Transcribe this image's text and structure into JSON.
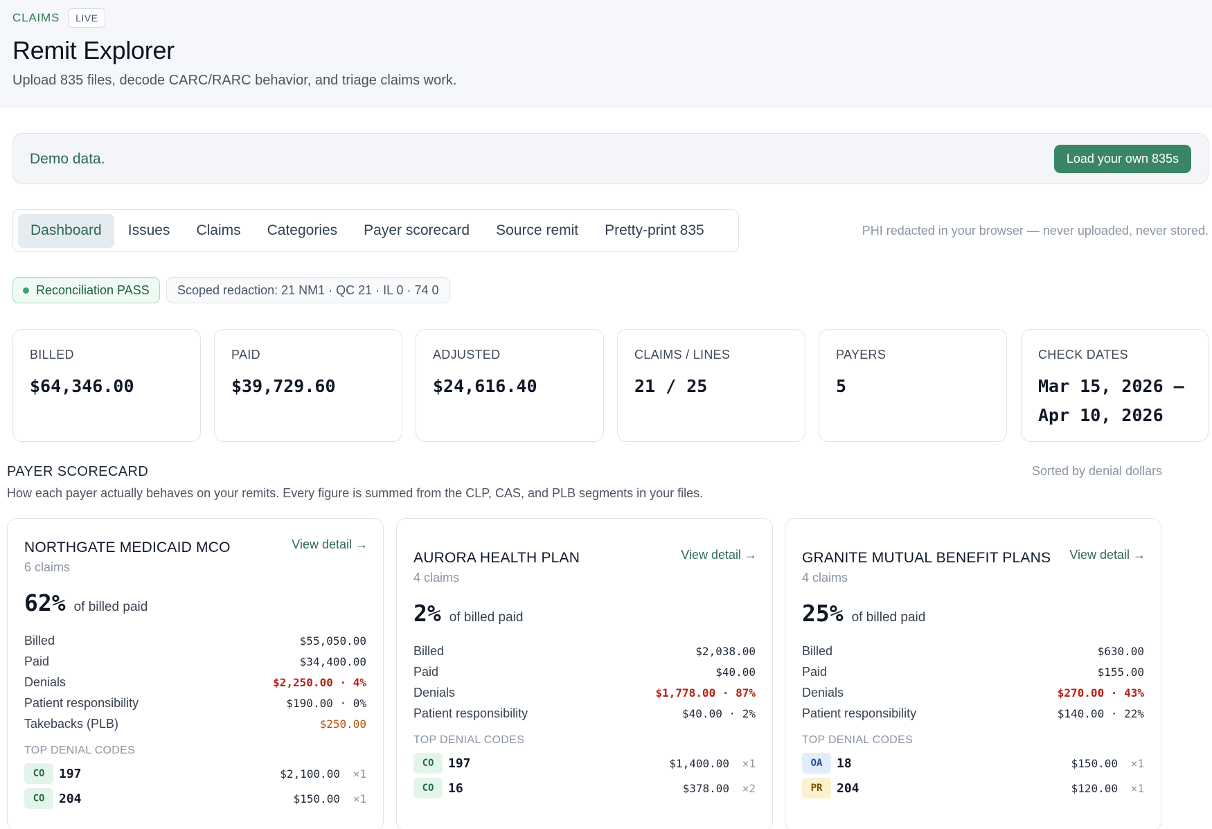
{
  "header": {
    "eyebrow": "CLAIMS",
    "badge": "LIVE",
    "title": "Remit Explorer",
    "subtitle": "Upload 835 files, decode CARC/RARC behavior, and triage claims work."
  },
  "banner": {
    "text": "Demo data.",
    "button": "Load your own 835s"
  },
  "tabs": [
    "Dashboard",
    "Issues",
    "Claims",
    "Categories",
    "Payer scorecard",
    "Source remit",
    "Pretty-print 835"
  ],
  "active_tab": "Dashboard",
  "phi_note": "PHI redacted in your browser — never uploaded, never stored.",
  "status": {
    "reconciliation": "Reconciliation PASS",
    "redaction": "Scoped redaction: 21 NM1 · QC 21 · IL 0 · 74 0"
  },
  "metrics": [
    {
      "label": "BILLED",
      "value": "$64,346.00"
    },
    {
      "label": "PAID",
      "value": "$39,729.60"
    },
    {
      "label": "ADJUSTED",
      "value": "$24,616.40"
    },
    {
      "label": "CLAIMS / LINES",
      "value": "21 / 25"
    },
    {
      "label": "PAYERS",
      "value": "5"
    },
    {
      "label": "CHECK DATES",
      "value_line1": "Mar 15, 2026 –",
      "value_line2": "Apr 10, 2026"
    }
  ],
  "scorecard": {
    "title": "PAYER SCORECARD",
    "sort_note": "Sorted by denial dollars",
    "description": "How each payer actually behaves on your remits. Every figure is summed from the CLP, CAS, and PLB segments in your files.",
    "view_detail": "View detail →",
    "pct_label": "of billed paid",
    "codes_title": "TOP DENIAL CODES",
    "row_labels": {
      "billed": "Billed",
      "paid": "Paid",
      "denials": "Denials",
      "patient": "Patient responsibility",
      "takebacks": "Takebacks (PLB)"
    },
    "payers": [
      {
        "name": "NORTHGATE MEDICAID MCO",
        "claims": "6 claims",
        "pct": "62%",
        "billed": "$55,050.00",
        "paid": "$34,400.00",
        "denials": "$2,250.00 · 4%",
        "patient": "$190.00 · 0%",
        "takebacks": "$250.00",
        "codes": [
          {
            "group": "CO",
            "code": "197",
            "amount": "$2,100.00",
            "count": "×1"
          },
          {
            "group": "CO",
            "code": "204",
            "amount": "$150.00",
            "count": "×1"
          }
        ]
      },
      {
        "name": "AURORA HEALTH PLAN",
        "claims": "4 claims",
        "pct": "2%",
        "billed": "$2,038.00",
        "paid": "$40.00",
        "denials": "$1,778.00 · 87%",
        "patient": "$40.00 · 2%",
        "codes": [
          {
            "group": "CO",
            "code": "197",
            "amount": "$1,400.00",
            "count": "×1"
          },
          {
            "group": "CO",
            "code": "16",
            "amount": "$378.00",
            "count": "×2"
          }
        ]
      },
      {
        "name": "GRANITE MUTUAL BENEFIT PLANS",
        "claims": "4 claims",
        "pct": "25%",
        "billed": "$630.00",
        "paid": "$155.00",
        "denials": "$270.00 · 43%",
        "patient": "$140.00 · 22%",
        "codes": [
          {
            "group": "OA",
            "code": "18",
            "amount": "$150.00",
            "count": "×1"
          },
          {
            "group": "PR",
            "code": "204",
            "amount": "$120.00",
            "count": "×1"
          }
        ]
      }
    ]
  }
}
